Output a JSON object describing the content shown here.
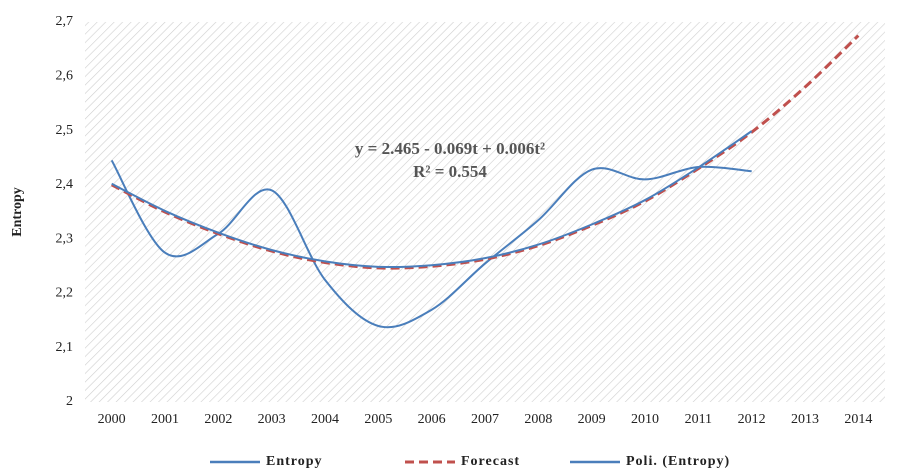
{
  "chart_data": {
    "type": "line",
    "y_label": "Entropy",
    "annotations": [
      "y = 2.465 - 0.069t + 0.006t²",
      "R² = 0.554"
    ],
    "categories": [
      "2000",
      "2001",
      "2002",
      "2003",
      "2004",
      "2005",
      "2006",
      "2007",
      "2008",
      "2009",
      "2010",
      "2011",
      "2012",
      "2013",
      "2014"
    ],
    "ylim": [
      2,
      2.7
    ],
    "yticks": [
      2,
      {
        "value": 2.1,
        "label": "2,1"
      },
      {
        "value": 2.2,
        "label": "2,2"
      },
      {
        "value": 2.3,
        "label": "2,3"
      },
      {
        "value": 2.4,
        "label": "2,4"
      },
      {
        "value": 2.5,
        "label": "2,5"
      },
      {
        "value": 2.6,
        "label": "2,6"
      },
      {
        "value": 2.7,
        "label": "2,7"
      }
    ],
    "legend": "bottom",
    "series": [
      {
        "name": "Entropy",
        "color": "#4a7ebb",
        "line_style": "solid",
        "values": [
          2.445,
          2.275,
          2.31,
          2.39,
          2.225,
          2.14,
          2.17,
          2.255,
          2.335,
          2.428,
          2.41,
          2.433,
          2.425,
          null,
          null
        ]
      },
      {
        "name": "Forecast",
        "color": "#c0504d",
        "line_style": "dashed",
        "values": [
          2.4,
          2.35,
          2.31,
          2.278,
          2.257,
          2.247,
          2.25,
          2.263,
          2.288,
          2.325,
          2.37,
          2.43,
          2.497,
          2.58,
          2.675
        ]
      },
      {
        "name": "Poli. (Entropy)",
        "color": "#4a7ebb",
        "line_style": "solid",
        "values": [
          2.402,
          2.352,
          2.312,
          2.28,
          2.259,
          2.249,
          2.252,
          2.265,
          2.29,
          2.327,
          2.372,
          2.432,
          2.499,
          null,
          null
        ]
      }
    ]
  }
}
